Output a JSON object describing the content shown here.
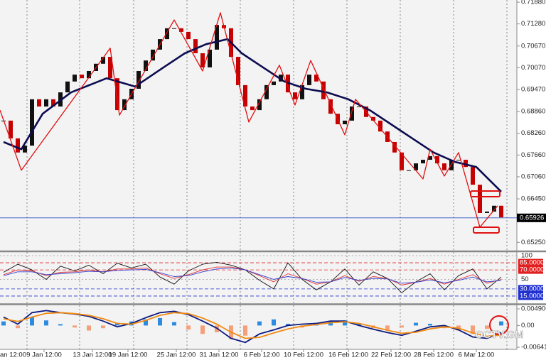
{
  "chart_data": {
    "type": "candlestick",
    "up_color": "#111111",
    "down_color": "#c40000",
    "close": [
      0.6861,
      0.6812,
      0.6773,
      0.6792,
      0.692,
      0.69,
      0.692,
      0.69,
      0.6939,
      0.6969,
      0.6988,
      0.6978,
      0.6998,
      0.7018,
      0.7037,
      0.6978,
      0.689,
      0.692,
      0.6949,
      0.6998,
      0.7027,
      0.7057,
      0.7086,
      0.7116,
      0.7116,
      0.7106,
      0.7086,
      0.7047,
      0.7008,
      0.7057,
      0.7125,
      0.7116,
      0.7037,
      0.6959,
      0.69,
      0.689,
      0.692,
      0.6959,
      0.6969,
      0.6988,
      0.6939,
      0.692,
      0.6959,
      0.6988,
      0.6969,
      0.692,
      0.688,
      0.6851,
      0.6861,
      0.69,
      0.69,
      0.6871,
      0.6861,
      0.6831,
      0.6802,
      0.6773,
      0.6724,
      0.6724,
      0.6743,
      0.6753,
      0.6763,
      0.6743,
      0.6724,
      0.6753,
      0.6753,
      0.6733,
      0.6684,
      0.6606,
      0.661,
      0.6626,
      0.6594
    ],
    "ylim": [
      0.6504,
      0.7194
    ],
    "yticks": [
      {
        "value": 0.7188,
        "label": "0.71880"
      },
      {
        "value": 0.7128,
        "label": "0.71280"
      },
      {
        "value": 0.7067,
        "label": "0.70670"
      },
      {
        "value": 0.7007,
        "label": "0.70070"
      },
      {
        "value": 0.6947,
        "label": "0.69470"
      },
      {
        "value": 0.6886,
        "label": "0.68860"
      },
      {
        "value": 0.6826,
        "label": "0.68260"
      },
      {
        "value": 0.6766,
        "label": "0.67660"
      },
      {
        "value": 0.6706,
        "label": "0.67060"
      },
      {
        "value": 0.6645,
        "label": "0.66450"
      },
      {
        "value": 0.6585,
        "label": "0.65850"
      },
      {
        "value": 0.6525,
        "label": "0.65250"
      }
    ],
    "current_price": 0.65926,
    "current_price_color": "#3050c0",
    "x_ticks": [
      {
        "value": -0.6,
        "label": "an 12:00"
      },
      {
        "value": 5.7,
        "label": "9 Jan 12:00"
      },
      {
        "value": 12.5,
        "label": "13 Jan 12:00"
      },
      {
        "value": 17.5,
        "label": "19 Jan 12:00"
      },
      {
        "value": 24.3,
        "label": "25 Jan 12:00"
      },
      {
        "value": 30.3,
        "label": "31 Jan 12:00"
      },
      {
        "value": 36.3,
        "label": "6 Feb 12:00"
      },
      {
        "value": 42.2,
        "label": "10 Feb 12:00"
      },
      {
        "value": 48.5,
        "label": "16 Feb 12:00"
      },
      {
        "value": 54.5,
        "label": "22 Feb 12:00"
      },
      {
        "value": 60.5,
        "label": "28 Feb 12:00"
      },
      {
        "value": 66.5,
        "label": "6 Mar 12:00"
      }
    ],
    "moving_average": {
      "color": "#0c0c50",
      "x": [
        0,
        2.5,
        5.5,
        9.5,
        14.5,
        18.5,
        22.5,
        25.5,
        28.5,
        31.5,
        33.5,
        36.5,
        39.5,
        42.5,
        45.5,
        48.5,
        51.5,
        54.5,
        57.5,
        60.5,
        63.5,
        66.5,
        68.5,
        70
      ],
      "values": [
        0.6802,
        0.6782,
        0.688,
        0.6939,
        0.6978,
        0.6955,
        0.7008,
        0.7047,
        0.7072,
        0.7086,
        0.7047,
        0.7008,
        0.6969,
        0.6949,
        0.6939,
        0.692,
        0.689,
        0.6851,
        0.6812,
        0.6773,
        0.6747,
        0.6733,
        0.6694,
        0.6665
      ]
    },
    "zigzag": {
      "color": "#e01010",
      "x": [
        -0.5,
        2.5,
        15,
        16.3,
        24,
        28,
        30.5,
        34.5,
        38.8,
        41,
        43.2,
        48,
        49.5,
        59,
        60,
        62,
        64,
        67,
        69.5
      ],
      "values": [
        0.689,
        0.6724,
        0.7061,
        0.6876,
        0.7139,
        0.6998,
        0.7159,
        0.6857,
        0.7014,
        0.6904,
        0.7027,
        0.6822,
        0.692,
        0.67,
        0.6782,
        0.6708,
        0.6773,
        0.6567,
        0.6626
      ]
    },
    "oscillator": {
      "x": [
        0,
        2,
        4,
        6,
        8,
        10,
        12,
        14,
        16,
        18,
        20,
        22,
        24,
        26,
        28,
        30,
        32,
        34,
        36,
        38,
        40,
        42,
        44,
        46,
        48,
        50,
        52,
        54,
        56,
        58,
        60,
        62,
        64,
        66,
        68,
        70
      ],
      "ylim": [
        0,
        106
      ],
      "yticks": [
        100,
        50
      ],
      "levels": [
        {
          "value": 85,
          "label": "85.0000",
          "color": "#e02020"
        },
        {
          "value": 70,
          "label": "70.0000",
          "color": "#e02020"
        },
        {
          "value": 30,
          "label": "30.0000",
          "color": "#2030d0"
        },
        {
          "value": 15,
          "label": "15.0000",
          "color": "#2030d0"
        }
      ],
      "series": [
        {
          "color": "#111111",
          "values": [
            65,
            82,
            70,
            50,
            78,
            68,
            80,
            62,
            84,
            74,
            82,
            55,
            40,
            68,
            82,
            86,
            80,
            70,
            48,
            30,
            85,
            50,
            28,
            45,
            72,
            38,
            66,
            52,
            22,
            45,
            62,
            28,
            58,
            72,
            30,
            55
          ]
        },
        {
          "color": "#e03030",
          "values": [
            60,
            70,
            68,
            58,
            65,
            66,
            70,
            66,
            72,
            72,
            74,
            62,
            52,
            60,
            70,
            76,
            76,
            70,
            58,
            45,
            62,
            52,
            40,
            45,
            58,
            46,
            56,
            52,
            38,
            44,
            52,
            40,
            50,
            60,
            42,
            50
          ]
        },
        {
          "color": "#3040d0",
          "values": [
            58,
            66,
            66,
            60,
            62,
            64,
            67,
            66,
            69,
            70,
            71,
            64,
            56,
            58,
            66,
            72,
            74,
            70,
            60,
            50,
            56,
            52,
            44,
            45,
            54,
            48,
            52,
            51,
            42,
            44,
            49,
            43,
            48,
            55,
            45,
            48
          ]
        }
      ]
    },
    "macd": {
      "x": [
        0,
        2,
        4,
        6,
        8,
        10,
        12,
        14,
        16,
        18,
        20,
        22,
        24,
        26,
        28,
        30,
        32,
        34,
        36,
        38,
        40,
        42,
        44,
        46,
        48,
        50,
        52,
        54,
        56,
        58,
        60,
        62,
        64,
        66,
        68,
        70
      ],
      "ylim": [
        -0.00704,
        0.00595
      ],
      "yticks": [
        0.0049007,
        {
          "value": 0,
          "label": "0.00"
        },
        -0.0064113
      ],
      "histogram": {
        "up_color": "#2a8be0",
        "down_color": "#f4a07a",
        "values": [
          0.0012,
          -0.0008,
          0.0025,
          0.0015,
          0.0004,
          -0.0006,
          -0.0015,
          -0.0008,
          0.0008,
          0.0012,
          0.0018,
          0.0022,
          0.001,
          -0.0012,
          -0.0025,
          -0.002,
          -0.004,
          -0.003,
          0.0012,
          0.0018,
          0.0005,
          -0.0006,
          0.0008,
          0.0012,
          0.0015,
          0.0006,
          -0.0008,
          -0.0012,
          -0.0006,
          0.0008,
          0.0005,
          -0.0008,
          -0.0015,
          -0.0025,
          -0.001,
          0.0012
        ]
      },
      "series": [
        {
          "color": "#0c1a80",
          "values": [
            0.0025,
            0.0004,
            0.0038,
            0.0044,
            0.0038,
            0.0034,
            0.0027,
            0.0013,
            -0.0004,
            0.0006,
            0.0023,
            0.0038,
            0.0042,
            0.0032,
            0.0013,
            -0.0008,
            -0.0038,
            -0.005,
            -0.0025,
            -0.0013,
            0,
            0.0004,
            0.0006,
            0.0013,
            0.0013,
            0,
            -0.0011,
            -0.0021,
            -0.0029,
            -0.0017,
            -0.0004,
            0,
            -0.0013,
            -0.0034,
            -0.0038,
            -0.0021
          ]
        },
        {
          "color": "#f08a10",
          "values": [
            0.002,
            0.0012,
            0.0025,
            0.0036,
            0.0038,
            0.0035,
            0.003,
            0.002,
            0.0006,
            0.0004,
            0.0015,
            0.003,
            0.0038,
            0.0035,
            0.0022,
            0.0004,
            -0.002,
            -0.0038,
            -0.0035,
            -0.0022,
            -0.001,
            -0.0002,
            0.0003,
            0.0008,
            0.0011,
            0.0006,
            -0.0004,
            -0.0014,
            -0.0023,
            -0.002,
            -0.001,
            -0.0004,
            -0.0008,
            -0.0022,
            -0.0032,
            -0.0028
          ]
        }
      ]
    },
    "watermark": "OCTV.GM"
  }
}
